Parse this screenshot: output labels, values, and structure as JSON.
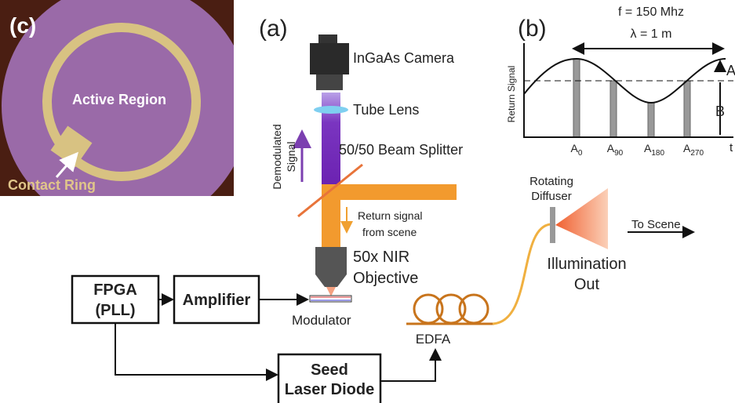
{
  "panel_c": {
    "label": "(c)",
    "active_region": "Active Region",
    "contact_ring": "Contact Ring"
  },
  "panel_a": {
    "label": "(a)",
    "camera": "InGaAs Camera",
    "tube_lens": "Tube Lens",
    "demodulated": [
      "Demodulated",
      "Signal"
    ],
    "beam_splitter": "50/50 Beam Splitter",
    "return_signal": [
      "Return signal",
      "from scene"
    ],
    "objective": [
      "50x NIR",
      "Objective"
    ],
    "modulator": "Modulator",
    "fpga": [
      "FPGA",
      "(PLL)"
    ],
    "amplifier": "Amplifier",
    "seed": [
      "Seed",
      "Laser Diode"
    ],
    "edfa": "EDFA",
    "diffuser": [
      "Rotating",
      "Diffuser"
    ],
    "illumination": [
      "Illumination",
      "Out"
    ],
    "to_scene": "To Scene"
  },
  "panel_b": {
    "label": "(b)",
    "frequency": "f = 150 Mhz",
    "wavelength": "λ = 1 m",
    "y_label": "Return Signal",
    "amplitude": "A",
    "offset": "B",
    "x_label": "t",
    "samples": [
      {
        "base": "A",
        "sub": "0"
      },
      {
        "base": "A",
        "sub": "90"
      },
      {
        "base": "A",
        "sub": "180"
      },
      {
        "base": "A",
        "sub": "270"
      }
    ]
  }
}
